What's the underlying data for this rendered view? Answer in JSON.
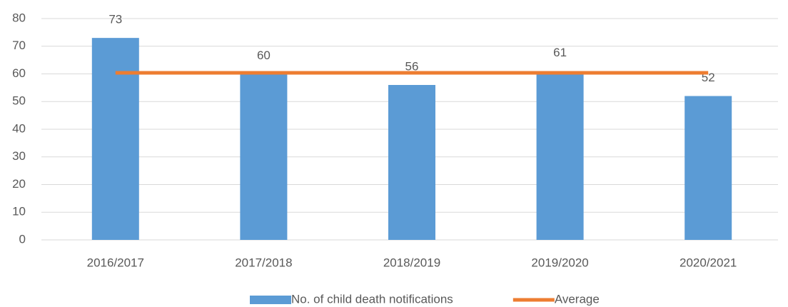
{
  "chart_data": {
    "type": "bar",
    "categories": [
      "2016/2017",
      "2017/2018",
      "2018/2019",
      "2019/2020",
      "2020/2021"
    ],
    "series": [
      {
        "name": "No. of child death notifications",
        "type": "bar",
        "color": "#5b9bd5",
        "values": [
          73,
          60,
          56,
          61,
          52
        ]
      },
      {
        "name": "Average",
        "type": "line",
        "color": "#ed7d31",
        "values": [
          60.4,
          60.4,
          60.4,
          60.4,
          60.4
        ]
      }
    ],
    "ylim": [
      0,
      80
    ],
    "yticks": [
      0,
      10,
      20,
      30,
      40,
      50,
      60,
      70,
      80
    ],
    "grid": true,
    "legend": "bottom"
  }
}
